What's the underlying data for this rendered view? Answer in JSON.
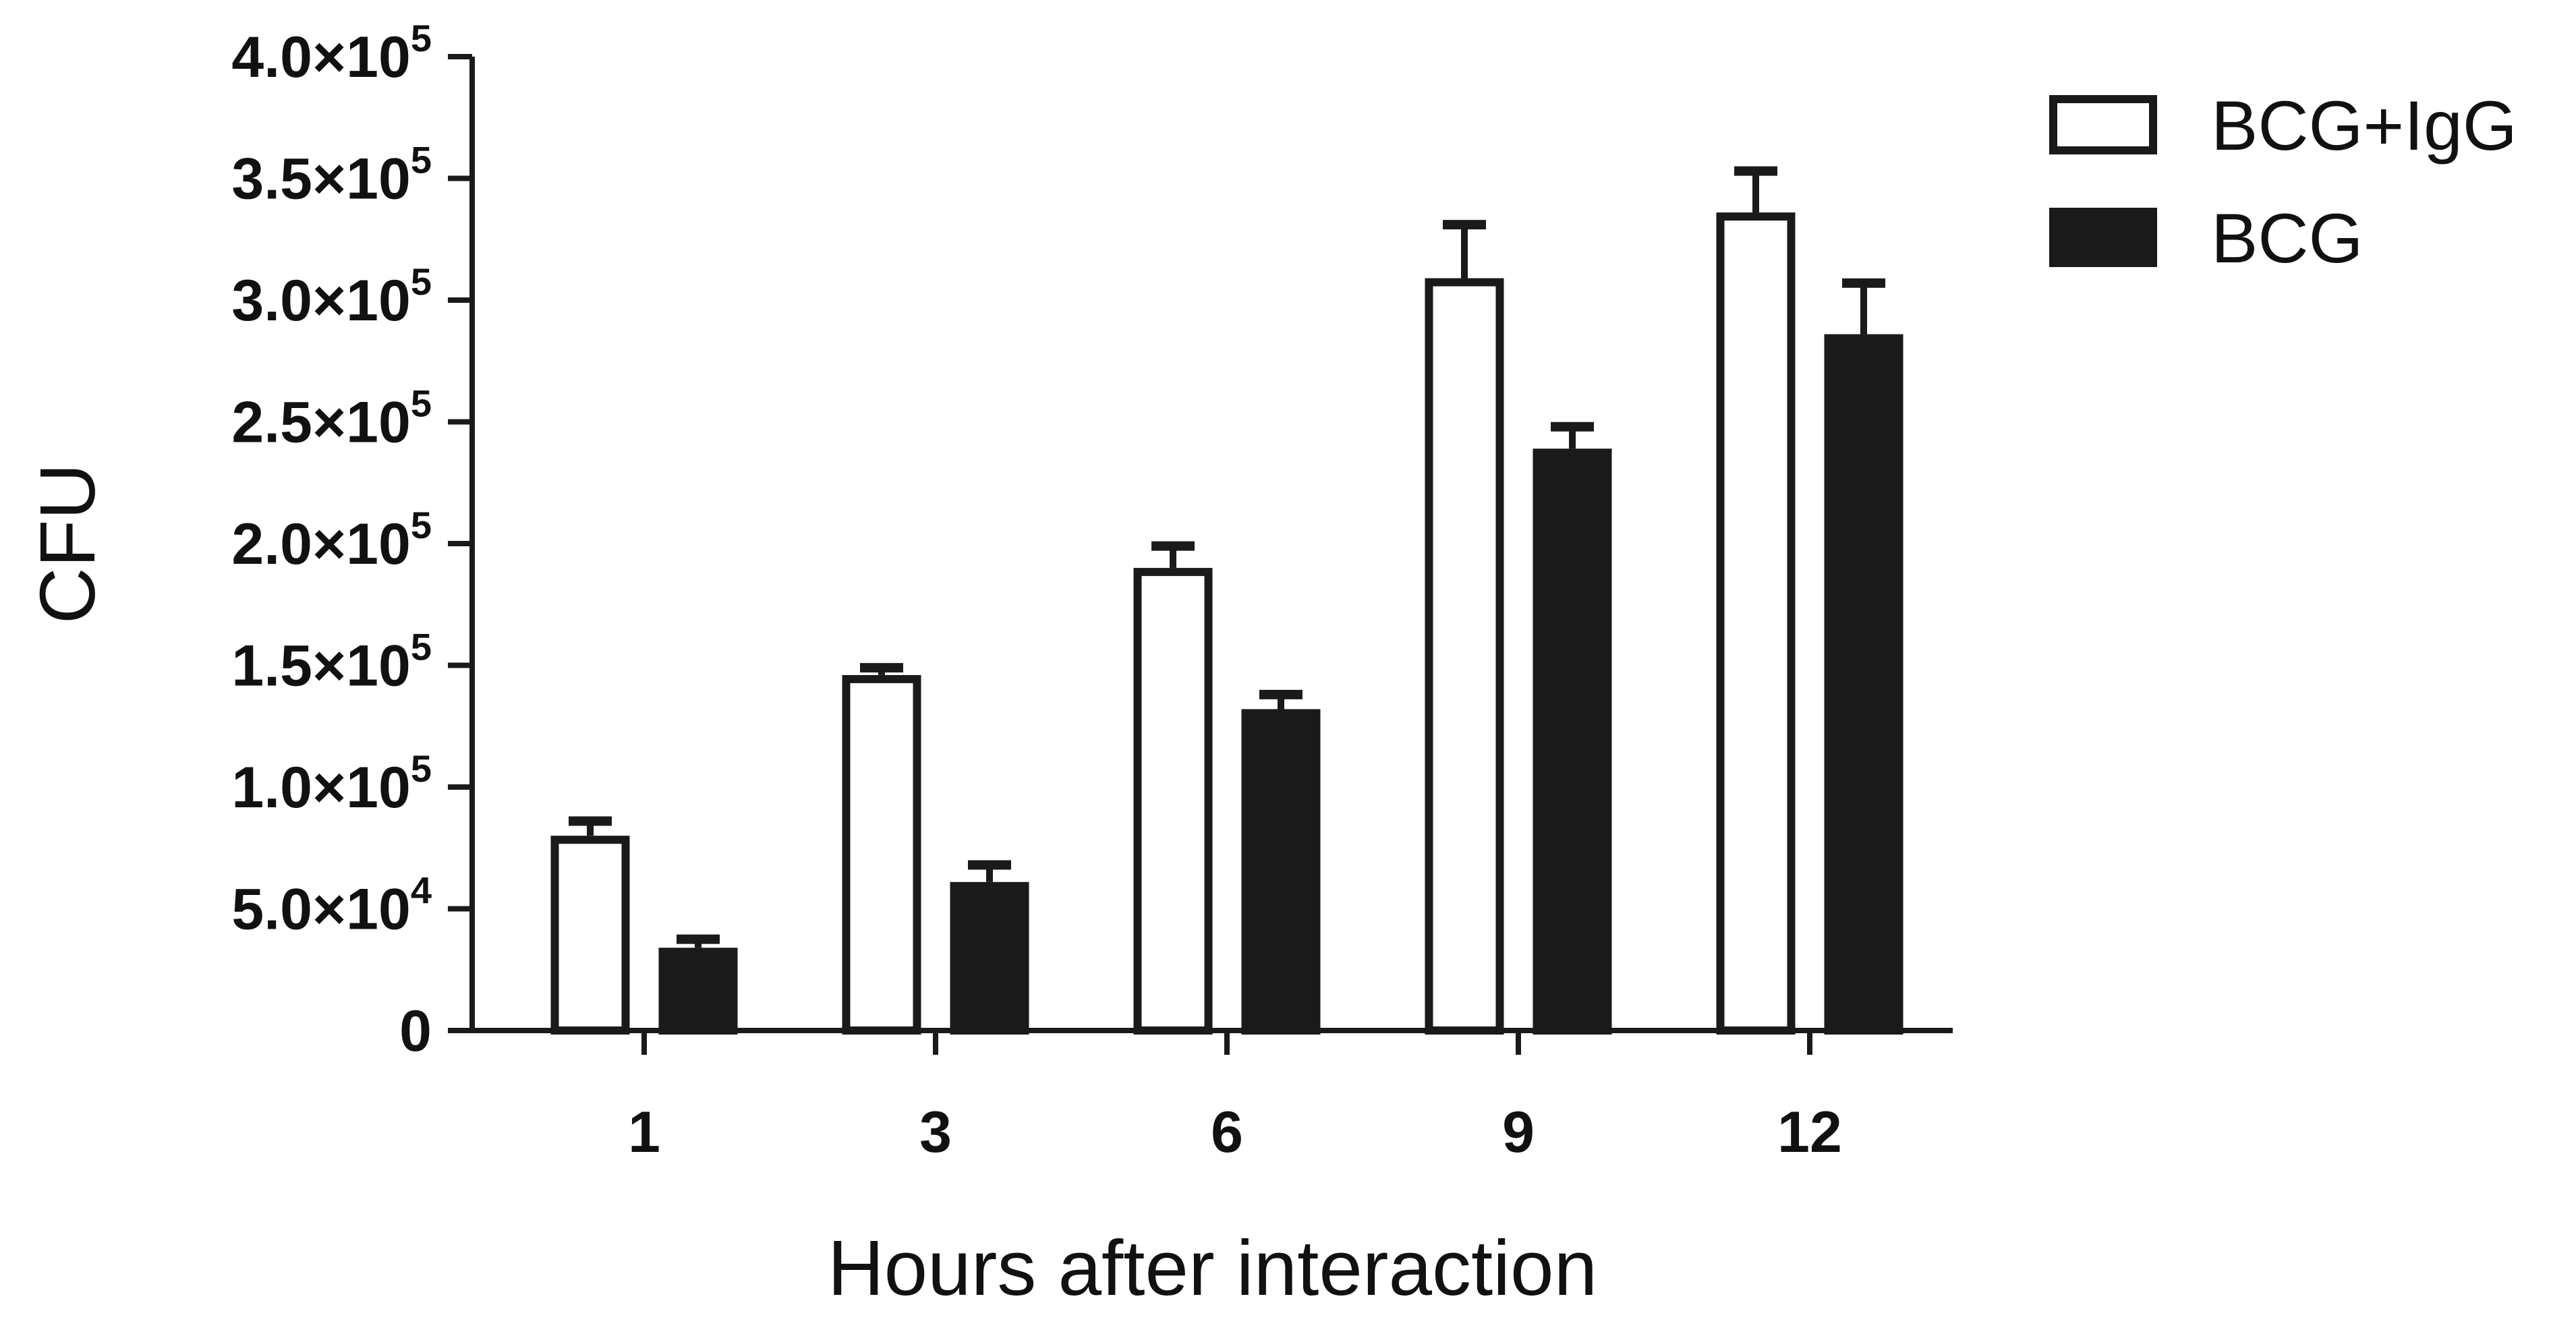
{
  "chart_data": {
    "type": "bar",
    "xlabel": "Hours after interaction",
    "ylabel": "CFU",
    "categories": [
      "1",
      "3",
      "6",
      "9",
      "12"
    ],
    "ylim": [
      0,
      400000
    ],
    "yticks": [
      {
        "value": 0,
        "mantissa": "0",
        "exponent": ""
      },
      {
        "value": 50000,
        "mantissa": "5.0",
        "exponent": "4"
      },
      {
        "value": 100000,
        "mantissa": "1.0",
        "exponent": "5"
      },
      {
        "value": 150000,
        "mantissa": "1.5",
        "exponent": "5"
      },
      {
        "value": 200000,
        "mantissa": "2.0",
        "exponent": "5"
      },
      {
        "value": 250000,
        "mantissa": "2.5",
        "exponent": "5"
      },
      {
        "value": 300000,
        "mantissa": "3.0",
        "exponent": "5"
      },
      {
        "value": 350000,
        "mantissa": "3.5",
        "exponent": "5"
      },
      {
        "value": 400000,
        "mantissa": "4.0",
        "exponent": "5"
      }
    ],
    "times_sign": "×",
    "tick_base": "10",
    "series": [
      {
        "name": "BCG+IgG",
        "fill": "#ffffff",
        "stroke": "#1a1a1a",
        "values": [
          80000,
          146000,
          190000,
          309000,
          336000
        ],
        "errors": [
          6000,
          3000,
          9000,
          22000,
          17000
        ]
      },
      {
        "name": "BCG",
        "fill": "#1a1a1a",
        "stroke": "#1a1a1a",
        "values": [
          34000,
          61000,
          132000,
          239000,
          286000
        ],
        "errors": [
          3500,
          7000,
          6000,
          9000,
          21000
        ]
      }
    ],
    "legend_position": "top-right",
    "grid": false
  }
}
